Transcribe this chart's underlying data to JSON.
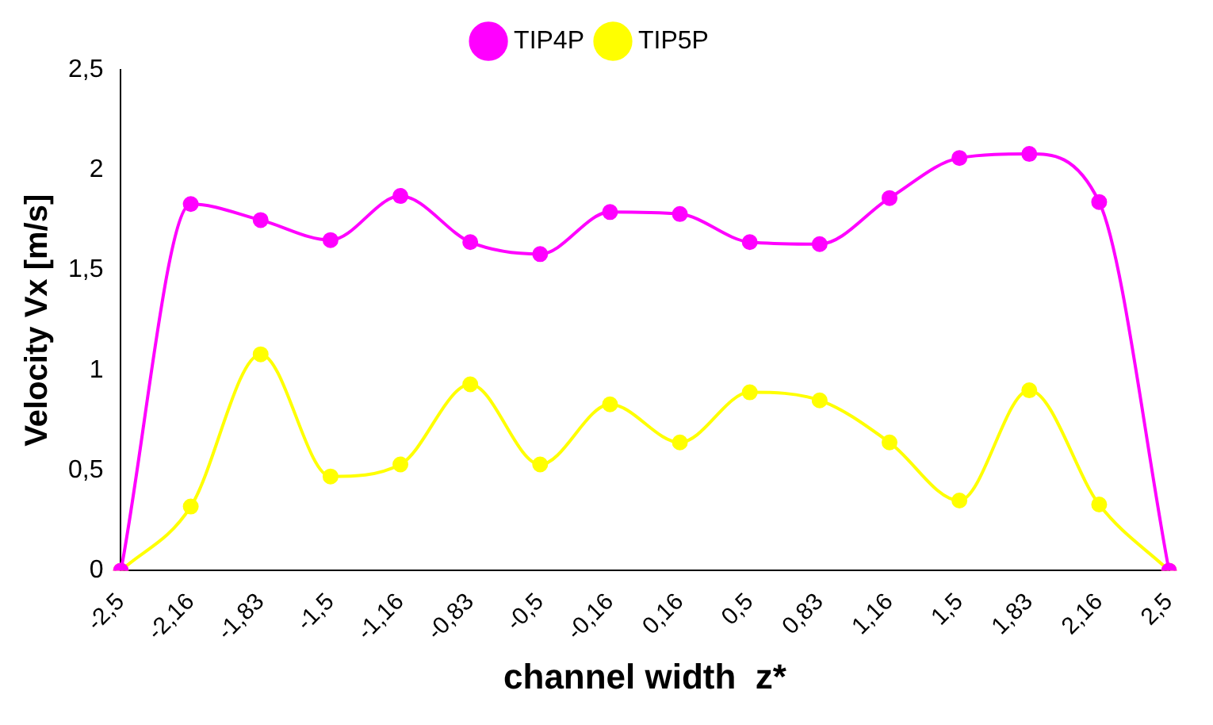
{
  "chart_data": {
    "type": "line",
    "xlabel": "channel width  z*",
    "ylabel": "Velocity Vx [m/s]",
    "categories": [
      "-2,5",
      "-2,16",
      "-1,83",
      "-1,5",
      "-1,16",
      "-0,83",
      "-0,5",
      "-0,16",
      "0,16",
      "0,5",
      "0,83",
      "1,16",
      "1,5",
      "1,83",
      "2,16",
      "2,5"
    ],
    "series": [
      {
        "name": "TIP4P",
        "color": "#ff00ff",
        "values": [
          0,
          1.83,
          1.75,
          1.65,
          1.87,
          1.64,
          1.58,
          1.79,
          1.78,
          1.64,
          1.63,
          1.86,
          2.06,
          2.08,
          1.84,
          0
        ]
      },
      {
        "name": "TIP5P",
        "color": "#ffff00",
        "values": [
          0,
          0.32,
          1.08,
          0.47,
          0.53,
          0.93,
          0.53,
          0.83,
          0.64,
          0.89,
          0.85,
          0.64,
          0.35,
          0.9,
          0.33,
          0
        ]
      }
    ],
    "ylim": [
      0,
      2.5
    ],
    "yticks": [
      0,
      {
        "value": 0.5,
        "label": "0,5"
      },
      1,
      {
        "value": 1.5,
        "label": "1,5"
      },
      2,
      {
        "value": 2.5,
        "label": "2,5"
      }
    ],
    "grid": false,
    "legend": "top",
    "marker": "circle",
    "line_style": "solid"
  }
}
